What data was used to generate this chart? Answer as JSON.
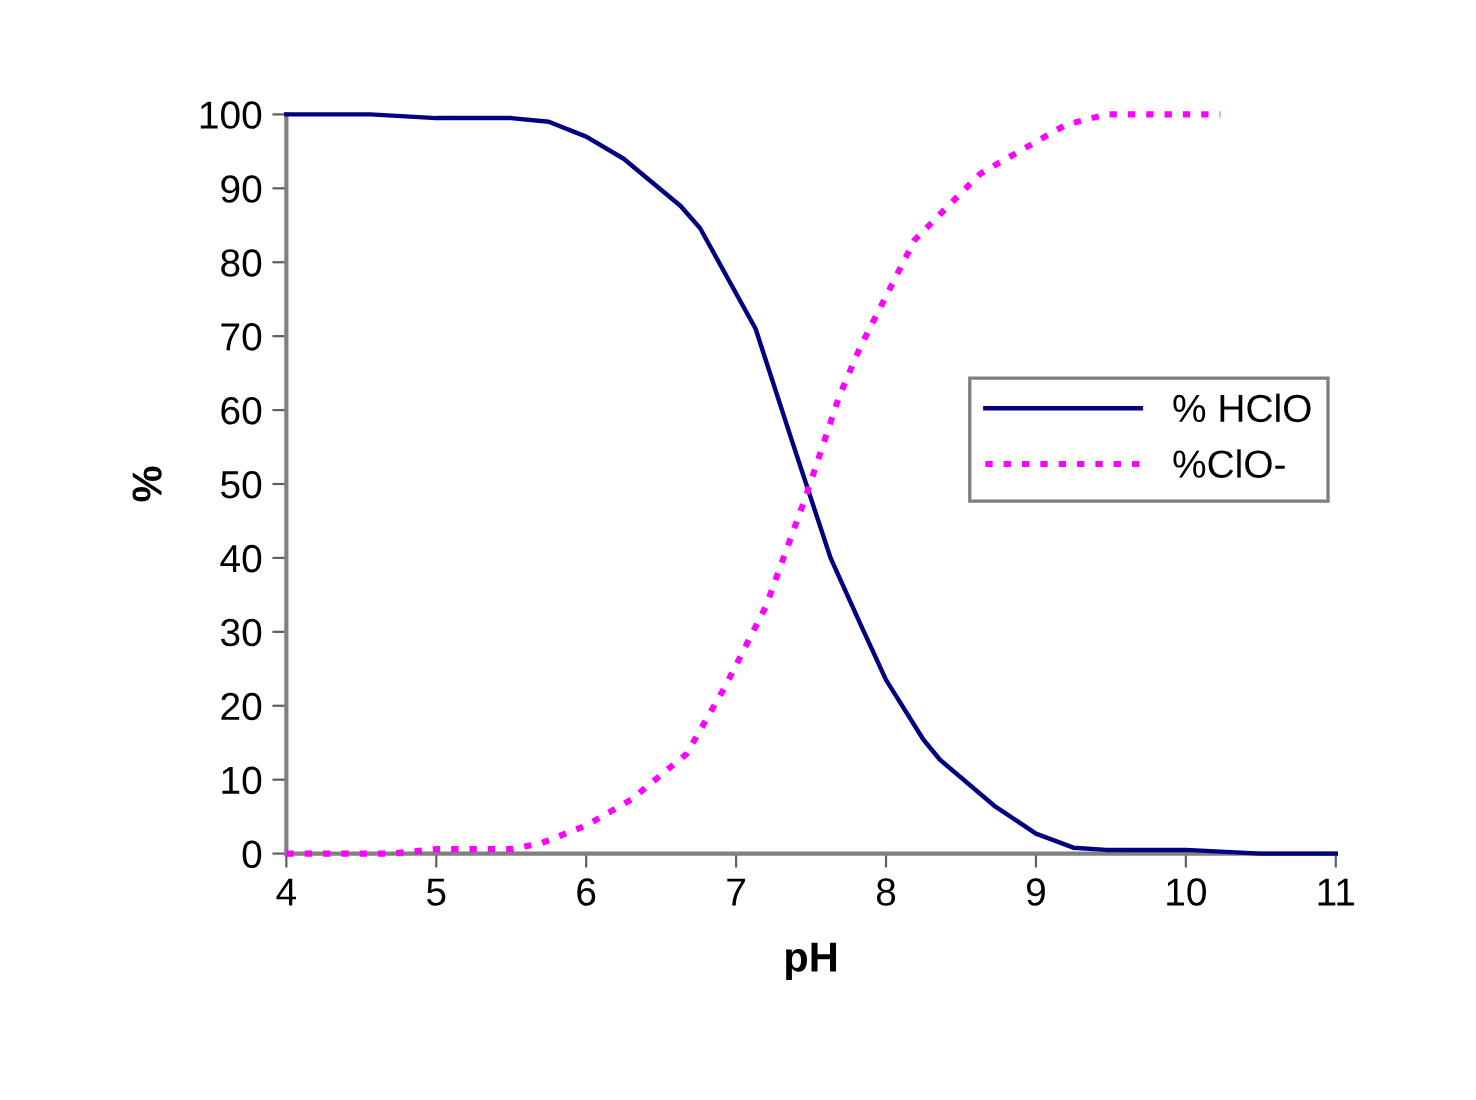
{
  "chart_data": {
    "type": "line",
    "xlabel": "pH",
    "ylabel": "%",
    "xlim": [
      4,
      11
    ],
    "xticks": [
      4,
      5,
      6,
      7,
      8,
      9,
      10,
      11
    ],
    "ylim": [
      0,
      100
    ],
    "yticks": [
      0,
      10,
      20,
      30,
      40,
      50,
      60,
      70,
      80,
      90,
      100
    ],
    "grid": false,
    "legend": "right",
    "marker": "none",
    "series": [
      {
        "name": "% HClO",
        "color": "#000080",
        "line_style": "solid",
        "x": [
          4,
          4.56,
          5,
          5.5,
          5.75,
          6.0,
          6.25,
          6.63,
          6.76,
          7.13,
          7.37,
          7.63,
          7.83,
          8.0,
          8.25,
          8.36,
          8.72,
          9.0,
          9.25,
          9.47,
          10,
          10.5,
          11
        ],
        "values": [
          100,
          100,
          99.5,
          99.5,
          99,
          97,
          94,
          87.6,
          84.6,
          71,
          56,
          40,
          31,
          23.5,
          15.4,
          12.7,
          6.5,
          2.7,
          0.8,
          0.5,
          0.5,
          0,
          0
        ]
      },
      {
        "name": "%ClO-",
        "color": "#ff00ff",
        "line_style": "dotted",
        "x": [
          4,
          4.7,
          5,
          5.5,
          5.7,
          6.0,
          6.3,
          6.67,
          6.93,
          7.2,
          7.47,
          7.69,
          7.83,
          8.19,
          8.63,
          9.2,
          9.47,
          10.23
        ],
        "values": [
          0,
          0,
          0.6,
          0.6,
          1.4,
          3.8,
          7.3,
          13.5,
          22.7,
          33.5,
          48.6,
          62,
          68.6,
          83,
          92,
          98.6,
          100,
          100
        ]
      }
    ]
  }
}
